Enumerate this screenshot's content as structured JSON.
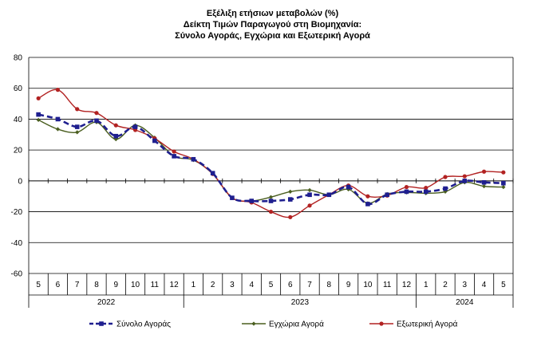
{
  "chart_data": {
    "type": "line",
    "title": "Εξέλιξη ετήσιων μεταβολών (%)",
    "subtitle_1": "Δείκτη Τιμών Παραγωγού στη Βιομηχανία:",
    "subtitle_2": "Σύνολο Αγοράς, Εγχώρια και Εξωτερική Αγορά",
    "xlabel": "",
    "ylabel": "",
    "ylim": [
      -60,
      80
    ],
    "yticks": [
      -60,
      -40,
      -20,
      0,
      20,
      40,
      60,
      80
    ],
    "grid": true,
    "legend_position": "bottom",
    "x": [
      "5",
      "6",
      "7",
      "8",
      "9",
      "10",
      "11",
      "12",
      "1",
      "2",
      "3",
      "4",
      "5",
      "6",
      "7",
      "8",
      "9",
      "10",
      "11",
      "12",
      "1",
      "2",
      "3",
      "4",
      "5"
    ],
    "years": [
      {
        "label": "2022",
        "start": 0,
        "end": 7
      },
      {
        "label": "2023",
        "start": 8,
        "end": 19
      },
      {
        "label": "2024",
        "start": 20,
        "end": 24
      }
    ],
    "series": [
      {
        "name": "Σύνολο Αγοράς",
        "color": "#1f1f8f",
        "style": "dashed-square",
        "values": [
          43,
          40,
          35,
          39,
          29,
          35,
          26,
          16,
          14,
          5,
          -11,
          -13,
          -13,
          -12,
          -9,
          -9,
          -4,
          -15,
          -9,
          -7,
          -7,
          -5,
          0,
          -1,
          -1.5
        ]
      },
      {
        "name": "Εγχώρια Αγορά",
        "color": "#4a5e1f",
        "style": "solid-diamond",
        "values": [
          39.5,
          33.5,
          31.5,
          38,
          27,
          36,
          28,
          16,
          13.5,
          4.5,
          -11,
          -13,
          -10.5,
          -7,
          -6,
          -9,
          -5.5,
          -14.5,
          -8.5,
          -7.5,
          -8,
          -7,
          -1,
          -3.5,
          -4
        ]
      },
      {
        "name": "Εξωτερική Αγορά",
        "color": "#b22222",
        "style": "solid-circle",
        "values": [
          53.5,
          59,
          46.5,
          44,
          36,
          33,
          27.5,
          19,
          14,
          4.5,
          -11,
          -14,
          -20,
          -23.5,
          -16,
          -9,
          -3,
          -10,
          -9.5,
          -4,
          -4.5,
          2.5,
          3,
          6,
          5.5
        ]
      }
    ]
  }
}
